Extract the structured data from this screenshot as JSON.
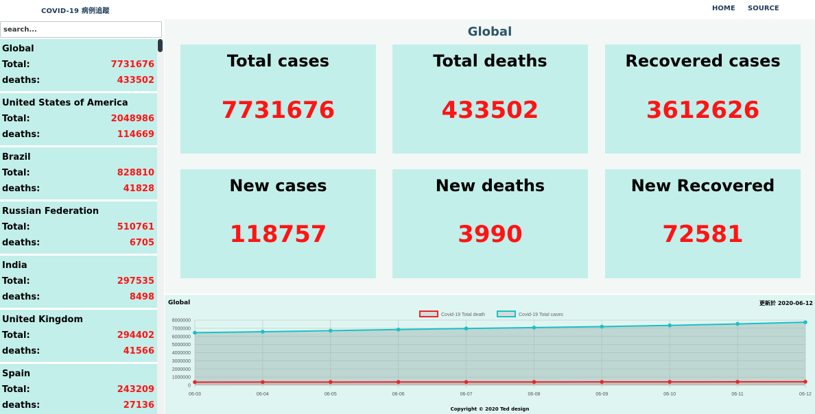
{
  "nav": {
    "brand": "COVID-19 病例追蹤",
    "home": "HOME",
    "source": "SOURCE"
  },
  "search": {
    "placeholder": "search..."
  },
  "sidebar": {
    "total_label": "Total:",
    "deaths_label": "deaths:",
    "countries": [
      {
        "name": "Global",
        "total": "7731676",
        "deaths": "433502"
      },
      {
        "name": "United States of America",
        "total": "2048986",
        "deaths": "114669"
      },
      {
        "name": "Brazil",
        "total": "828810",
        "deaths": "41828"
      },
      {
        "name": "Russian Federation",
        "total": "510761",
        "deaths": "6705"
      },
      {
        "name": "India",
        "total": "297535",
        "deaths": "8498"
      },
      {
        "name": "United Kingdom",
        "total": "294402",
        "deaths": "41566"
      },
      {
        "name": "Spain",
        "total": "243209",
        "deaths": "27136"
      }
    ]
  },
  "main": {
    "title": "Global",
    "cards": [
      {
        "title": "Total cases",
        "value": "7731676"
      },
      {
        "title": "Total deaths",
        "value": "433502"
      },
      {
        "title": "Recovered cases",
        "value": "3612626"
      },
      {
        "title": "New cases",
        "value": "118757"
      },
      {
        "title": "New deaths",
        "value": "3990"
      },
      {
        "title": "New Recovered",
        "value": "72581"
      }
    ]
  },
  "chart_panel": {
    "name": "Global",
    "updated": "更新於 2020-06-12",
    "copyright": "Copyright © 2020 Ted design"
  },
  "colors": {
    "accent": "#ff1414",
    "card_bg": "#c2efea",
    "death_line": "#e8262a",
    "cases_line": "#1cbfc4"
  },
  "chart_data": {
    "type": "line",
    "x": [
      "06-03",
      "06-04",
      "06-05",
      "06-06",
      "06-07",
      "06-08",
      "06-09",
      "06-10",
      "06-11",
      "06-12"
    ],
    "ylim": [
      0,
      8000000
    ],
    "yticks": [
      "8000000",
      "7000000",
      "6000000",
      "5000000",
      "4000000",
      "3000000",
      "2000000",
      "1000000",
      "0"
    ],
    "grid": true,
    "legend_position": "top",
    "series": [
      {
        "name": "Covid-19 Total death",
        "color": "#e8262a",
        "values": [
          382000,
          387000,
          392000,
          396000,
          400000,
          403000,
          407000,
          413000,
          418000,
          433502
        ]
      },
      {
        "name": "Covid-19 Total cases",
        "color": "#1cbfc4",
        "values": [
          6450000,
          6570000,
          6700000,
          6840000,
          6970000,
          7080000,
          7200000,
          7350000,
          7530000,
          7731676
        ]
      }
    ]
  }
}
